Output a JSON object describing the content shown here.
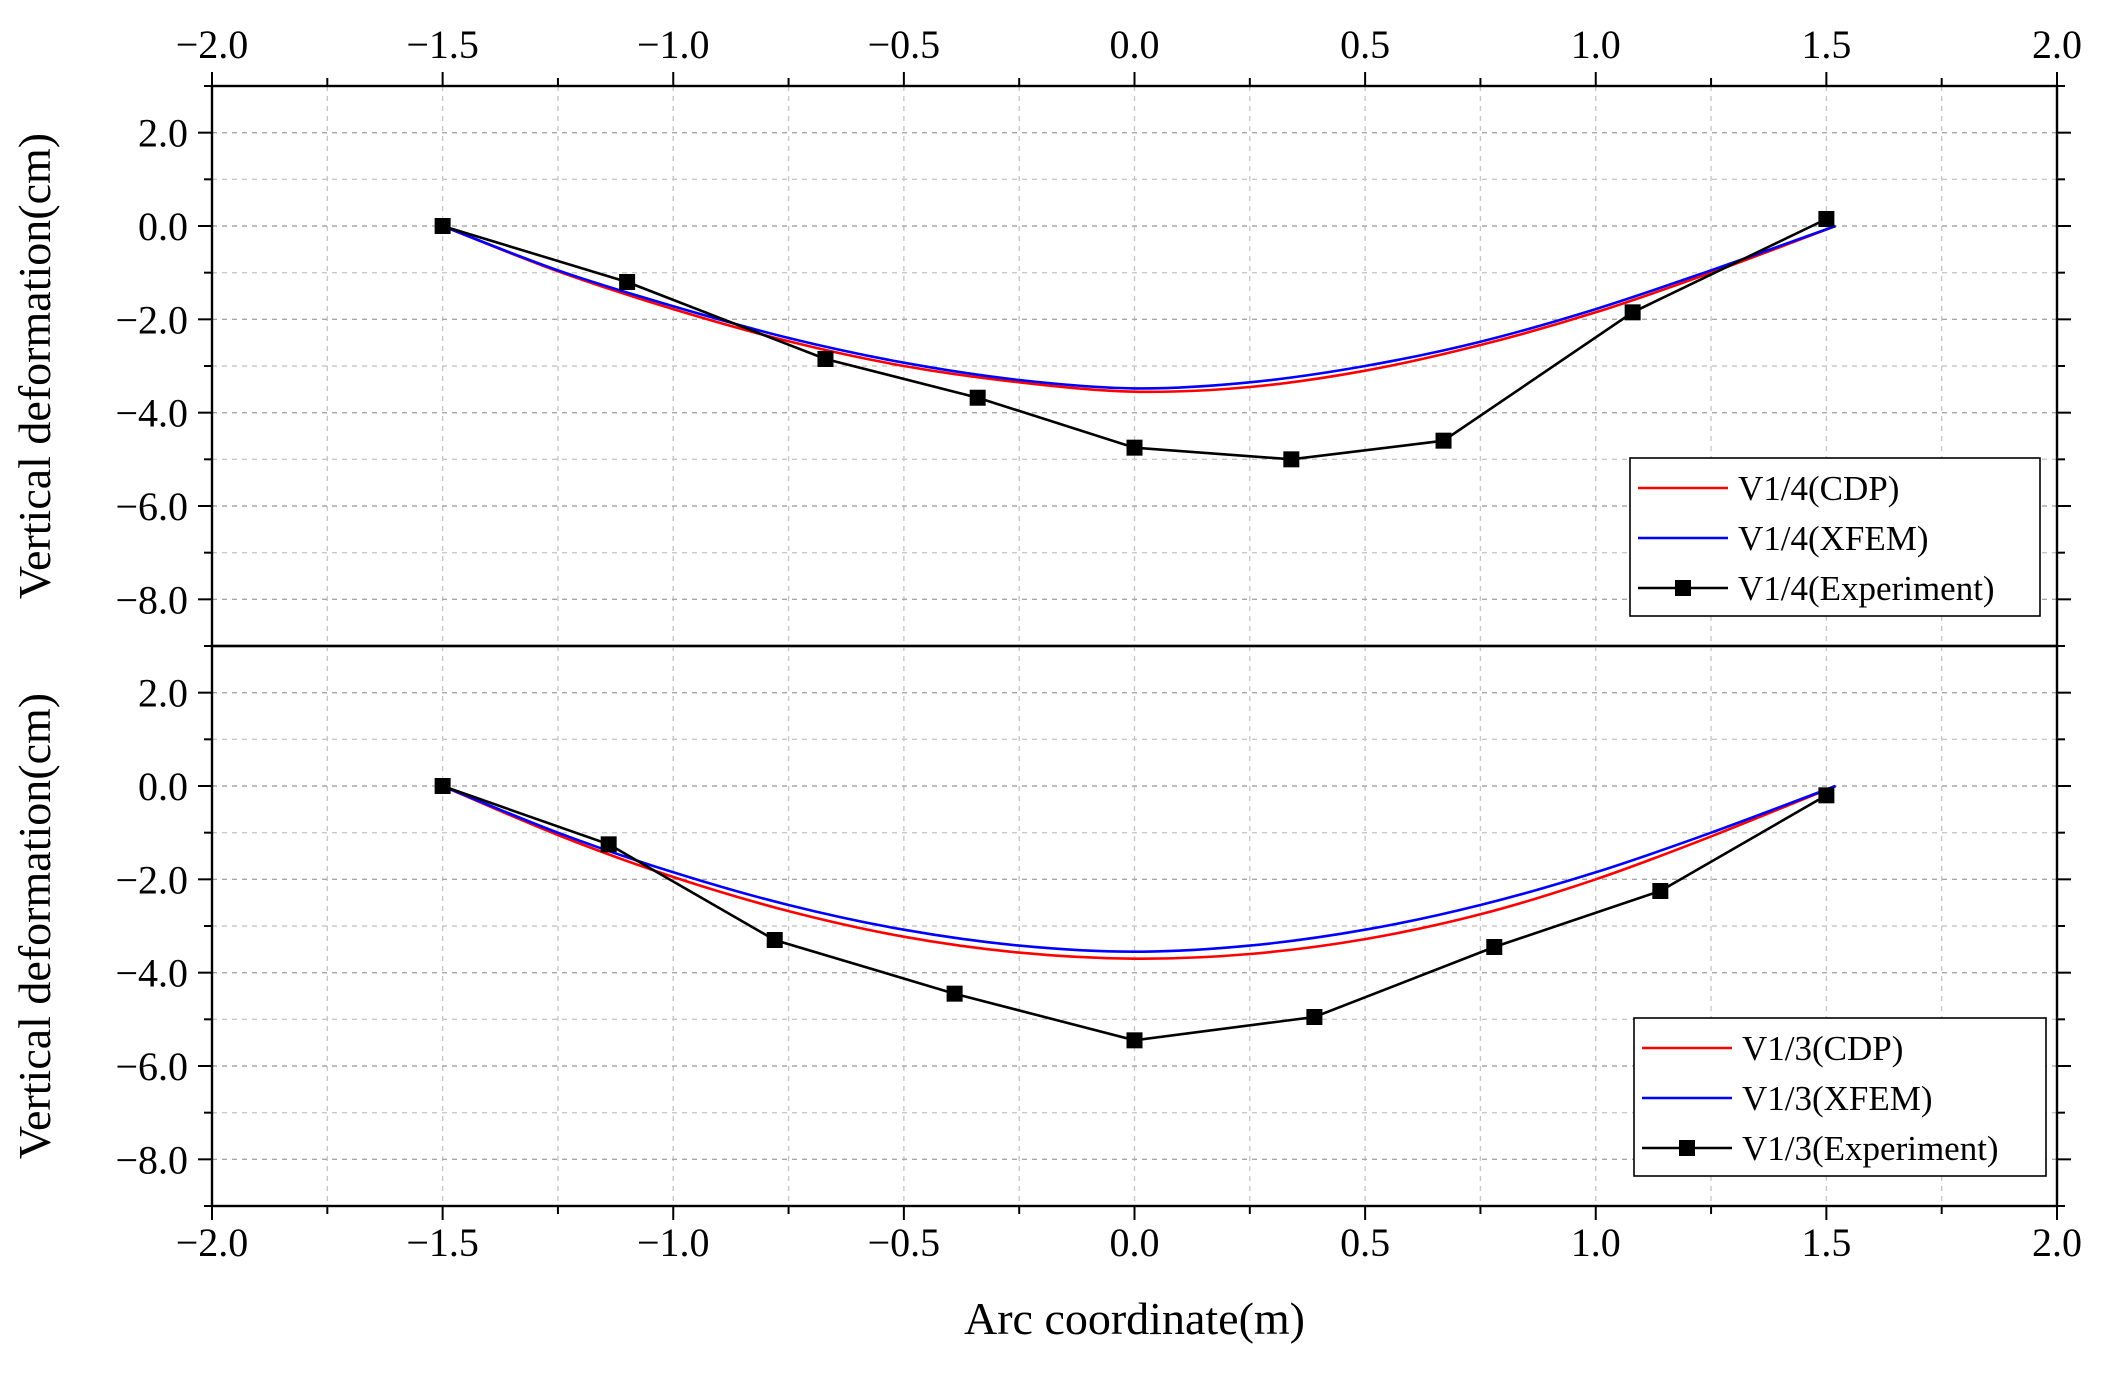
{
  "chart_data": [
    {
      "type": "line",
      "panel": "top",
      "xlabel": "",
      "ylabel": "Vertical deformation(cm)",
      "xlim": [
        -2.0,
        2.0
      ],
      "ylim": [
        -9.0,
        3.0
      ],
      "x_ticks": [
        "−2.0",
        "−1.5",
        "−1.0",
        "−0.5",
        "0.0",
        "0.5",
        "1.0",
        "1.5",
        "2.0"
      ],
      "x_tick_values": [
        -2.0,
        -1.5,
        -1.0,
        -0.5,
        0.0,
        0.5,
        1.0,
        1.5,
        2.0
      ],
      "y_ticks": [
        "2.0",
        "0.0",
        "−2.0",
        "−4.0",
        "−6.0",
        "−8.0"
      ],
      "y_tick_values": [
        2.0,
        0.0,
        -2.0,
        -4.0,
        -6.0,
        -8.0
      ],
      "grid": true,
      "legend_position": "bottom-right",
      "series": [
        {
          "name": "V1/4(CDP)",
          "color": "#ff0000",
          "marker": "none",
          "x": [
            -1.5,
            -1.25,
            -1.0,
            -0.75,
            -0.5,
            -0.25,
            0.0,
            0.25,
            0.5,
            0.75,
            1.0,
            1.25,
            1.52
          ],
          "y": [
            0.0,
            -0.97,
            -1.78,
            -2.47,
            -3.0,
            -3.35,
            -3.55,
            -3.45,
            -3.1,
            -2.55,
            -1.85,
            -1.0,
            0.0
          ]
        },
        {
          "name": "V1/4(XFEM)",
          "color": "#0000ff",
          "marker": "none",
          "x": [
            -1.5,
            -1.25,
            -1.0,
            -0.75,
            -0.5,
            -0.25,
            0.0,
            0.25,
            0.5,
            0.75,
            1.0,
            1.25,
            1.52
          ],
          "y": [
            0.0,
            -0.95,
            -1.72,
            -2.4,
            -2.93,
            -3.3,
            -3.48,
            -3.35,
            -3.0,
            -2.48,
            -1.78,
            -0.95,
            0.0
          ]
        },
        {
          "name": "V1/4(Experiment)",
          "color": "#000000",
          "marker": "square",
          "x": [
            -1.5,
            -1.1,
            -0.67,
            -0.34,
            0.0,
            0.34,
            0.67,
            1.08,
            1.5
          ],
          "y": [
            0.0,
            -1.2,
            -2.85,
            -3.68,
            -4.75,
            -5.0,
            -4.6,
            -1.85,
            0.15
          ]
        }
      ]
    },
    {
      "type": "line",
      "panel": "bottom",
      "xlabel": "Arc coordinate(m)",
      "ylabel": "Vertical deformation(cm)",
      "xlim": [
        -2.0,
        2.0
      ],
      "ylim": [
        -9.0,
        3.0
      ],
      "x_ticks": [
        "−2.0",
        "−1.5",
        "−1.0",
        "−0.5",
        "0.0",
        "0.5",
        "1.0",
        "1.5",
        "2.0"
      ],
      "x_tick_values": [
        -2.0,
        -1.5,
        -1.0,
        -0.5,
        0.0,
        0.5,
        1.0,
        1.5,
        2.0
      ],
      "y_ticks": [
        "2.0",
        "0.0",
        "−2.0",
        "−4.0",
        "−6.0",
        "−8.0"
      ],
      "y_tick_values": [
        2.0,
        0.0,
        -2.0,
        -4.0,
        -6.0,
        -8.0
      ],
      "grid": true,
      "legend_position": "bottom-right",
      "series": [
        {
          "name": "V1/3(CDP)",
          "color": "#ff0000",
          "marker": "none",
          "x": [
            -1.5,
            -1.25,
            -1.0,
            -0.75,
            -0.5,
            -0.25,
            0.0,
            0.25,
            0.5,
            0.75,
            1.0,
            1.25,
            1.52
          ],
          "y": [
            0.0,
            -1.05,
            -1.95,
            -2.68,
            -3.23,
            -3.57,
            -3.7,
            -3.6,
            -3.28,
            -2.75,
            -2.0,
            -1.08,
            0.0
          ]
        },
        {
          "name": "V1/3(XFEM)",
          "color": "#0000ff",
          "marker": "none",
          "x": [
            -1.5,
            -1.25,
            -1.0,
            -0.75,
            -0.5,
            -0.25,
            0.0,
            0.25,
            0.5,
            0.75,
            1.0,
            1.25,
            1.52
          ],
          "y": [
            0.0,
            -1.0,
            -1.85,
            -2.55,
            -3.08,
            -3.42,
            -3.55,
            -3.42,
            -3.08,
            -2.55,
            -1.85,
            -1.0,
            0.0
          ]
        },
        {
          "name": "V1/3(Experiment)",
          "color": "#000000",
          "marker": "square",
          "x": [
            -1.5,
            -1.14,
            -0.78,
            -0.39,
            0.0,
            0.39,
            0.78,
            1.14,
            1.5
          ],
          "y": [
            0.0,
            -1.25,
            -3.3,
            -4.45,
            -5.45,
            -4.95,
            -3.45,
            -2.25,
            -0.2
          ]
        }
      ]
    }
  ]
}
